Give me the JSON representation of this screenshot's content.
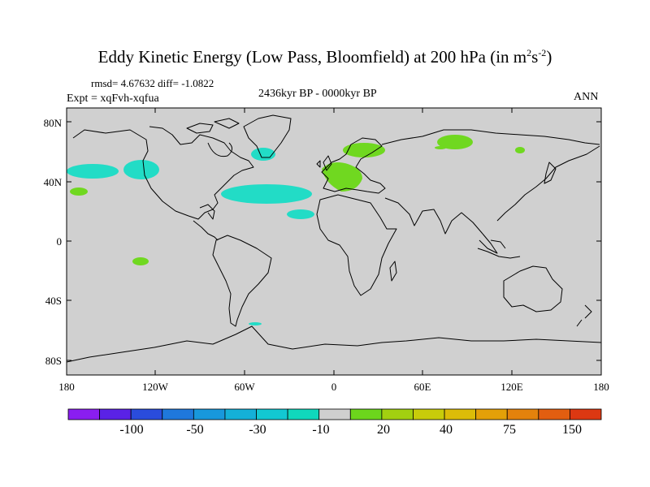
{
  "title": {
    "main": "Eddy Kinetic Energy (Low Pass, Bloomfield) at 200 hPa (in m",
    "sup1": "2",
    "mid": "s",
    "sup2": "-2",
    "end": ")"
  },
  "stats": "rmsd= 4.67632 diff= -1.0822",
  "experiment": "Expt = xqFvh-xqfua",
  "period": "2436kyr BP - 0000kyr BP",
  "season": "ANN",
  "y_labels": [
    "80N",
    "40N",
    "0",
    "40S",
    "80S"
  ],
  "x_labels": [
    "180",
    "120W",
    "60W",
    "0",
    "60E",
    "120E",
    "180"
  ],
  "colorbar": {
    "colors": [
      "#8a1ef0",
      "#5a22e6",
      "#2a4cdc",
      "#1f78dc",
      "#1898dc",
      "#14b0d8",
      "#12c8d2",
      "#10d8bc",
      "#cfcfcf",
      "#6cd61c",
      "#a2d010",
      "#c8cc0a",
      "#dcbc08",
      "#e4a008",
      "#e4820c",
      "#e25e10",
      "#dc3812"
    ],
    "labels": [
      "-100",
      "-50",
      "-30",
      "-10",
      "20",
      "40",
      "75",
      "150"
    ]
  },
  "map_colors": {
    "background": "#d0d0d0",
    "cyan": "#22dcc6",
    "green": "#70d820"
  }
}
